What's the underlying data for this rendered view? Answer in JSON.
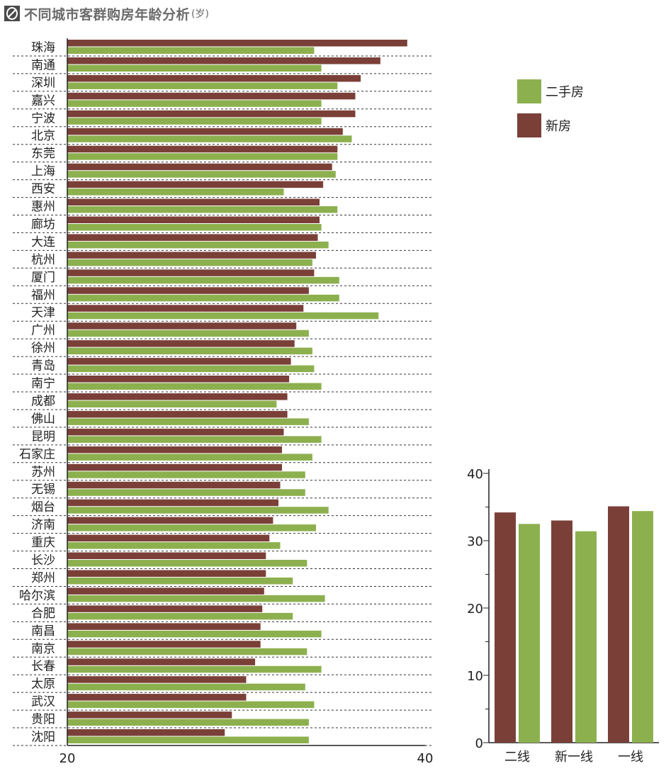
{
  "title": {
    "text": "不同城市客群购房年龄分析",
    "unit": "(岁)",
    "icon": "logo-icon"
  },
  "colors": {
    "new_home": "#7a4038",
    "second_hand": "#8db04f",
    "gridline": "#333333",
    "text": "#222222"
  },
  "chart_data": [
    {
      "type": "bar",
      "orientation": "horizontal",
      "title": "不同城市客群购房年龄分析(岁)",
      "xlim": [
        20,
        40
      ],
      "xticks": [
        "20",
        "40"
      ],
      "categories": [
        "珠海",
        "南通",
        "深圳",
        "嘉兴",
        "宁波",
        "北京",
        "东莞",
        "上海",
        "西安",
        "惠州",
        "廊坊",
        "大连",
        "杭州",
        "厦门",
        "福州",
        "天津",
        "广州",
        "徐州",
        "青岛",
        "南宁",
        "成都",
        "佛山",
        "昆明",
        "石家庄",
        "苏州",
        "无锡",
        "烟台",
        "济南",
        "重庆",
        "长沙",
        "郑州",
        "哈尔滨",
        "合肥",
        "南昌",
        "南京",
        "长春",
        "太原",
        "武汉",
        "贵阳",
        "沈阳"
      ],
      "series": [
        {
          "name": "新房",
          "values": [
            39.0,
            37.5,
            36.4,
            36.1,
            36.1,
            35.4,
            35.1,
            34.8,
            34.3,
            34.1,
            34.1,
            34.0,
            33.9,
            33.8,
            33.5,
            33.2,
            32.8,
            32.7,
            32.5,
            32.4,
            32.3,
            32.3,
            32.1,
            32.0,
            32.0,
            31.9,
            31.8,
            31.5,
            31.3,
            31.1,
            31.1,
            31.0,
            30.9,
            30.8,
            30.8,
            30.5,
            30.0,
            30.0,
            29.2,
            28.8
          ]
        },
        {
          "name": "二手房",
          "values": [
            33.8,
            34.2,
            35.1,
            34.2,
            34.2,
            35.9,
            35.1,
            35.0,
            32.1,
            35.1,
            34.2,
            34.6,
            33.7,
            35.2,
            35.2,
            37.4,
            33.5,
            33.7,
            33.8,
            34.2,
            31.7,
            33.5,
            34.2,
            33.7,
            33.3,
            33.3,
            34.6,
            33.9,
            31.9,
            33.4,
            32.6,
            34.4,
            32.6,
            34.2,
            33.4,
            34.2,
            33.3,
            33.8,
            33.5,
            33.5
          ]
        }
      ]
    },
    {
      "type": "bar",
      "orientation": "vertical",
      "categories": [
        "二线",
        "新一线",
        "一线"
      ],
      "ylim": [
        0,
        40
      ],
      "yticks": [
        "0",
        "10",
        "20",
        "30",
        "40"
      ],
      "series": [
        {
          "name": "新房",
          "values": [
            34.2,
            33.0,
            35.1
          ]
        },
        {
          "name": "二手房",
          "values": [
            32.5,
            31.4,
            34.4
          ]
        }
      ]
    }
  ],
  "legend": {
    "items": [
      {
        "label": "二手房",
        "color": "#8db04f"
      },
      {
        "label": "新房",
        "color": "#7a4038"
      }
    ]
  }
}
